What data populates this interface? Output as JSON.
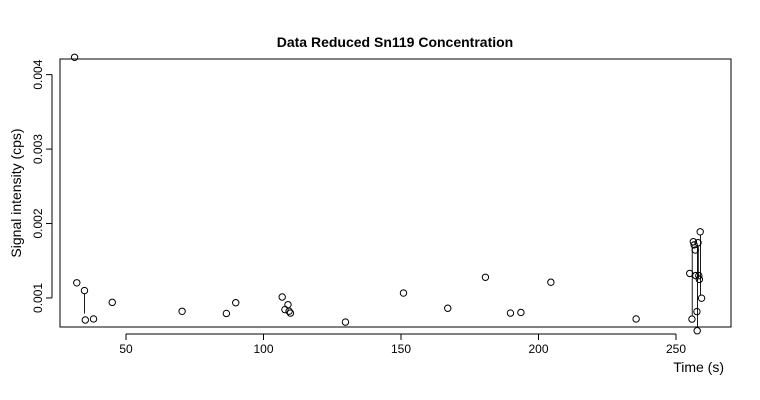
{
  "chart_data": {
    "type": "scatter",
    "title": "Data Reduced Sn119 Concentration",
    "xlabel": "Time (s)",
    "ylabel": "Signal intensity (cps)",
    "xlim": [
      26,
      270
    ],
    "ylim": [
      0.00061,
      0.00421
    ],
    "xticks": [
      50,
      100,
      150,
      200,
      250
    ],
    "yticks": [
      0.001,
      0.002,
      0.003,
      0.004
    ],
    "ytick_labels": [
      "0.001",
      "0.002",
      "0.003",
      "0.004"
    ],
    "grid": false,
    "legend": "none",
    "colors": {
      "points": "#000000",
      "axes": "#000000",
      "background": "#ffffff"
    },
    "points": [
      {
        "x": 31.3,
        "y": 0.004233
      },
      {
        "x": 32.1,
        "y": 0.001204
      },
      {
        "x": 34.9,
        "y": 0.001099
      },
      {
        "x": 35.2,
        "y": 0.000704
      },
      {
        "x": 38.2,
        "y": 0.000718
      },
      {
        "x": 45.0,
        "y": 0.000941
      },
      {
        "x": 70.4,
        "y": 0.000821
      },
      {
        "x": 86.5,
        "y": 0.000792
      },
      {
        "x": 89.9,
        "y": 0.000936
      },
      {
        "x": 106.8,
        "y": 0.001013
      },
      {
        "x": 107.8,
        "y": 0.000844
      },
      {
        "x": 108.9,
        "y": 0.00091
      },
      {
        "x": 109.3,
        "y": 0.000822
      },
      {
        "x": 109.8,
        "y": 0.000797
      },
      {
        "x": 129.8,
        "y": 0.000676
      },
      {
        "x": 150.9,
        "y": 0.001066
      },
      {
        "x": 167.0,
        "y": 0.000862
      },
      {
        "x": 180.7,
        "y": 0.001278
      },
      {
        "x": 189.8,
        "y": 0.000797
      },
      {
        "x": 193.6,
        "y": 0.000805
      },
      {
        "x": 204.5,
        "y": 0.001211
      },
      {
        "x": 235.5,
        "y": 0.000718
      },
      {
        "x": 255.0,
        "y": 0.00133
      },
      {
        "x": 255.8,
        "y": 0.000716
      },
      {
        "x": 256.3,
        "y": 0.001755
      },
      {
        "x": 256.6,
        "y": 0.001713
      },
      {
        "x": 257.0,
        "y": 0.001644
      },
      {
        "x": 257.2,
        "y": 0.0013
      },
      {
        "x": 257.6,
        "y": 0.000817
      },
      {
        "x": 257.7,
        "y": 0.00056
      },
      {
        "x": 258.0,
        "y": 0.001742
      },
      {
        "x": 258.3,
        "y": 0.0013
      },
      {
        "x": 258.5,
        "y": 0.00125
      },
      {
        "x": 258.8,
        "y": 0.001889
      },
      {
        "x": 259.3,
        "y": 0.000997
      }
    ],
    "segments": [
      {
        "x": [
          34.9,
          34.9
        ],
        "y": [
          0.001062,
          0.000792
        ]
      },
      {
        "x": [
          255.9,
          255.9
        ],
        "y": [
          0.001713,
          0.00076
        ]
      },
      {
        "x": [
          257.8,
          257.8
        ],
        "y": [
          0.0017,
          0.000604
        ]
      },
      {
        "x": [
          258.1,
          258.1
        ],
        "y": [
          0.0017,
          0.001287
        ]
      },
      {
        "x": [
          258.9,
          258.9
        ],
        "y": [
          0.00185,
          0.00104
        ]
      }
    ]
  }
}
